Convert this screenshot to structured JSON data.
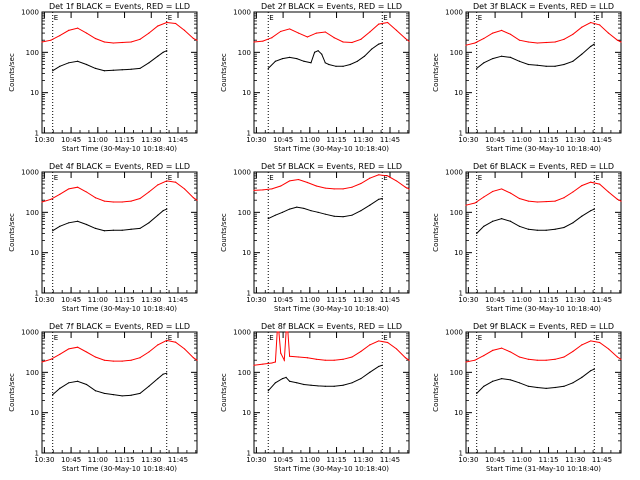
{
  "figure": {
    "ylabel": "Counts/sec",
    "xlabel_prefix": "Start Time",
    "time_ticks": [
      "10:30",
      "10:45",
      "11:00",
      "11:15",
      "11:30",
      "11:45"
    ],
    "y_ticks": [
      1,
      10,
      100,
      1000
    ],
    "marker": "E",
    "colors": {
      "events": "#000000",
      "lld": "#ff0000"
    },
    "grid": false,
    "log_y": true
  },
  "chart_data": [
    {
      "type": "line",
      "title": "Det 1f BLACK = Events, RED = LLD",
      "xlabel": "Start Time (30-May-10 10:18:40)",
      "ylabel": "Counts/sec",
      "ylim": [
        1,
        1000
      ],
      "xlim_minutes": [
        10.0,
        97.0
      ],
      "marker_lines_minutes": [
        16.0,
        80.0
      ],
      "series": [
        {
          "name": "Events",
          "x": [
            16,
            20,
            25,
            30,
            35,
            40,
            45,
            50,
            55,
            60,
            65,
            70,
            75,
            78,
            80
          ],
          "y": [
            35,
            45,
            55,
            60,
            50,
            40,
            35,
            36,
            37,
            38,
            40,
            55,
            80,
            100,
            110
          ]
        },
        {
          "name": "LLD",
          "x": [
            10,
            15,
            20,
            25,
            30,
            35,
            40,
            45,
            50,
            55,
            60,
            65,
            70,
            75,
            80,
            85,
            90,
            95,
            97
          ],
          "y": [
            180,
            200,
            260,
            350,
            400,
            300,
            220,
            180,
            170,
            175,
            180,
            210,
            300,
            450,
            550,
            520,
            350,
            220,
            200
          ]
        }
      ]
    },
    {
      "type": "line",
      "title": "Det 2f BLACK = Events, RED = LLD",
      "xlabel": "Start Time (30-May-10 10:18:40)",
      "ylabel": "Counts/sec",
      "ylim": [
        1,
        1000
      ],
      "xlim_minutes": [
        10.0,
        97.0
      ],
      "marker_lines_minutes": [
        18.0,
        82.0
      ],
      "series": [
        {
          "name": "Events",
          "x": [
            18,
            22,
            26,
            30,
            34,
            38,
            42,
            44,
            46,
            48,
            50,
            52,
            56,
            60,
            64,
            68,
            72,
            76,
            80,
            82
          ],
          "y": [
            40,
            60,
            70,
            75,
            70,
            60,
            55,
            100,
            110,
            90,
            55,
            50,
            45,
            45,
            50,
            60,
            80,
            120,
            160,
            170
          ]
        },
        {
          "name": "LLD",
          "x": [
            10,
            15,
            20,
            25,
            30,
            35,
            40,
            45,
            50,
            55,
            60,
            65,
            70,
            75,
            80,
            85,
            90,
            95,
            97
          ],
          "y": [
            180,
            190,
            230,
            330,
            380,
            300,
            240,
            300,
            320,
            230,
            180,
            175,
            210,
            320,
            500,
            550,
            350,
            220,
            190
          ]
        }
      ]
    },
    {
      "type": "line",
      "title": "Det 3f BLACK = Events, RED = LLD",
      "xlabel": "Start Time (30-May-10 10:18:40)",
      "ylabel": "Counts/sec",
      "ylim": [
        1,
        1000
      ],
      "xlim_minutes": [
        10.0,
        97.0
      ],
      "marker_lines_minutes": [
        16.0,
        82.0
      ],
      "series": [
        {
          "name": "Events",
          "x": [
            16,
            20,
            25,
            30,
            35,
            40,
            45,
            50,
            55,
            60,
            65,
            70,
            75,
            80,
            82
          ],
          "y": [
            40,
            55,
            70,
            80,
            75,
            60,
            50,
            48,
            45,
            45,
            50,
            60,
            90,
            140,
            160
          ]
        },
        {
          "name": "LLD",
          "x": [
            10,
            15,
            20,
            25,
            30,
            35,
            40,
            45,
            50,
            55,
            60,
            65,
            70,
            75,
            80,
            85,
            90,
            95,
            97
          ],
          "y": [
            150,
            170,
            220,
            300,
            350,
            280,
            200,
            180,
            170,
            175,
            180,
            210,
            280,
            420,
            550,
            480,
            300,
            200,
            180
          ]
        }
      ]
    },
    {
      "type": "line",
      "title": "Det 4f BLACK = Events, RED = LLD",
      "xlabel": "Start Time (30-May-10 10:18:40)",
      "ylabel": "Counts/sec",
      "ylim": [
        1,
        1000
      ],
      "xlim_minutes": [
        10.0,
        97.0
      ],
      "marker_lines_minutes": [
        16.0,
        80.0
      ],
      "series": [
        {
          "name": "Events",
          "x": [
            16,
            20,
            25,
            30,
            35,
            40,
            45,
            50,
            55,
            60,
            65,
            70,
            75,
            78,
            80
          ],
          "y": [
            35,
            45,
            55,
            60,
            50,
            40,
            35,
            36,
            36,
            38,
            40,
            55,
            85,
            110,
            120
          ]
        },
        {
          "name": "LLD",
          "x": [
            10,
            15,
            20,
            25,
            30,
            35,
            40,
            45,
            50,
            55,
            60,
            65,
            70,
            75,
            80,
            85,
            90,
            95,
            97
          ],
          "y": [
            180,
            210,
            280,
            380,
            420,
            320,
            230,
            190,
            180,
            180,
            190,
            220,
            320,
            480,
            600,
            560,
            380,
            230,
            200
          ]
        }
      ]
    },
    {
      "type": "line",
      "title": "Det 5f BLACK = Events, RED = LLD",
      "xlabel": "Start Time (30-May-10 10:18:40)",
      "ylabel": "Counts/sec",
      "ylim": [
        1,
        1000
      ],
      "xlim_minutes": [
        10.0,
        97.0
      ],
      "marker_lines_minutes": [
        18.0,
        82.0
      ],
      "series": [
        {
          "name": "Events",
          "x": [
            18,
            22,
            26,
            30,
            34,
            38,
            42,
            46,
            50,
            55,
            60,
            65,
            70,
            75,
            80,
            82
          ],
          "y": [
            70,
            85,
            100,
            120,
            135,
            125,
            110,
            100,
            90,
            80,
            78,
            85,
            110,
            150,
            210,
            220
          ]
        },
        {
          "name": "LLD",
          "x": [
            10,
            15,
            20,
            25,
            30,
            35,
            40,
            45,
            50,
            55,
            60,
            65,
            70,
            75,
            80,
            85,
            90,
            95,
            97
          ],
          "y": [
            350,
            360,
            380,
            450,
            600,
            650,
            550,
            450,
            400,
            380,
            380,
            420,
            520,
            700,
            850,
            800,
            600,
            420,
            380
          ]
        }
      ]
    },
    {
      "type": "line",
      "title": "Det 6f BLACK = Events, RED = LLD",
      "xlabel": "Start Time (30-May-10 10:18:40)",
      "ylabel": "Counts/sec",
      "ylim": [
        1,
        1000
      ],
      "xlim_minutes": [
        10.0,
        97.0
      ],
      "marker_lines_minutes": [
        16.0,
        82.0
      ],
      "series": [
        {
          "name": "Events",
          "x": [
            16,
            20,
            25,
            30,
            35,
            40,
            45,
            50,
            55,
            60,
            65,
            70,
            75,
            80,
            82
          ],
          "y": [
            30,
            45,
            60,
            70,
            60,
            45,
            38,
            36,
            36,
            38,
            42,
            55,
            80,
            110,
            120
          ]
        },
        {
          "name": "LLD",
          "x": [
            10,
            15,
            20,
            25,
            30,
            35,
            40,
            45,
            50,
            55,
            60,
            65,
            70,
            75,
            80,
            85,
            90,
            95,
            97
          ],
          "y": [
            150,
            170,
            240,
            330,
            380,
            300,
            220,
            190,
            180,
            185,
            190,
            230,
            320,
            460,
            560,
            500,
            320,
            210,
            190
          ]
        }
      ]
    },
    {
      "type": "line",
      "title": "Det 7f BLACK = Events, RED = LLD",
      "xlabel": "Start Time (30-May-10 10:18:40)",
      "ylabel": "Counts/sec",
      "ylim": [
        1,
        1000
      ],
      "xlim_minutes": [
        10.0,
        97.0
      ],
      "marker_lines_minutes": [
        16.0,
        80.0
      ],
      "series": [
        {
          "name": "Events",
          "x": [
            16,
            20,
            25,
            30,
            35,
            40,
            45,
            50,
            55,
            60,
            65,
            70,
            75,
            78,
            80
          ],
          "y": [
            28,
            40,
            55,
            60,
            50,
            35,
            30,
            28,
            26,
            27,
            30,
            45,
            70,
            90,
            95
          ]
        },
        {
          "name": "LLD",
          "x": [
            10,
            15,
            20,
            25,
            30,
            35,
            40,
            45,
            50,
            55,
            60,
            65,
            70,
            75,
            80,
            85,
            90,
            95,
            97
          ],
          "y": [
            180,
            210,
            280,
            380,
            420,
            320,
            240,
            200,
            190,
            190,
            200,
            230,
            320,
            480,
            620,
            560,
            380,
            230,
            200
          ]
        }
      ]
    },
    {
      "type": "line",
      "title": "Det 8f BLACK = Events, RED = LLD",
      "xlabel": "Start Time (30-May-10 10:18:40)",
      "ylabel": "Counts/sec",
      "ylim": [
        1,
        1000
      ],
      "xlim_minutes": [
        10.0,
        97.0
      ],
      "marker_lines_minutes": [
        18.0,
        82.0
      ],
      "series": [
        {
          "name": "Events",
          "x": [
            18,
            22,
            26,
            28,
            30,
            34,
            38,
            42,
            46,
            50,
            55,
            60,
            65,
            70,
            75,
            80,
            82
          ],
          "y": [
            35,
            55,
            70,
            75,
            60,
            55,
            50,
            48,
            46,
            45,
            45,
            48,
            55,
            70,
            100,
            140,
            150
          ]
        },
        {
          "name": "LLD",
          "x": [
            10,
            15,
            20,
            22,
            23,
            24,
            25,
            27,
            28,
            29,
            30,
            35,
            40,
            45,
            50,
            55,
            60,
            65,
            70,
            75,
            80,
            85,
            90,
            95,
            97
          ],
          "y": [
            150,
            160,
            170,
            180,
            1000,
            1000,
            300,
            200,
            1000,
            1000,
            250,
            240,
            230,
            210,
            200,
            200,
            210,
            240,
            330,
            480,
            600,
            550,
            380,
            230,
            200
          ]
        }
      ]
    },
    {
      "type": "line",
      "title": "Det 9f BLACK = Events, RED = LLD",
      "xlabel": "Start Time (31-May-10 10:18:40)",
      "ylabel": "Counts/sec",
      "ylim": [
        1,
        1000
      ],
      "xlim_minutes": [
        10.0,
        97.0
      ],
      "marker_lines_minutes": [
        16.0,
        82.0
      ],
      "series": [
        {
          "name": "Events",
          "x": [
            16,
            20,
            25,
            30,
            35,
            40,
            45,
            50,
            55,
            60,
            65,
            70,
            75,
            80,
            82
          ],
          "y": [
            30,
            45,
            60,
            70,
            65,
            55,
            45,
            42,
            40,
            42,
            45,
            55,
            75,
            110,
            120
          ]
        },
        {
          "name": "LLD",
          "x": [
            10,
            15,
            20,
            25,
            30,
            35,
            40,
            45,
            50,
            55,
            60,
            65,
            70,
            75,
            80,
            85,
            90,
            95,
            97
          ],
          "y": [
            180,
            200,
            260,
            350,
            400,
            320,
            240,
            210,
            200,
            200,
            210,
            240,
            330,
            480,
            600,
            550,
            380,
            240,
            210
          ]
        }
      ]
    }
  ]
}
